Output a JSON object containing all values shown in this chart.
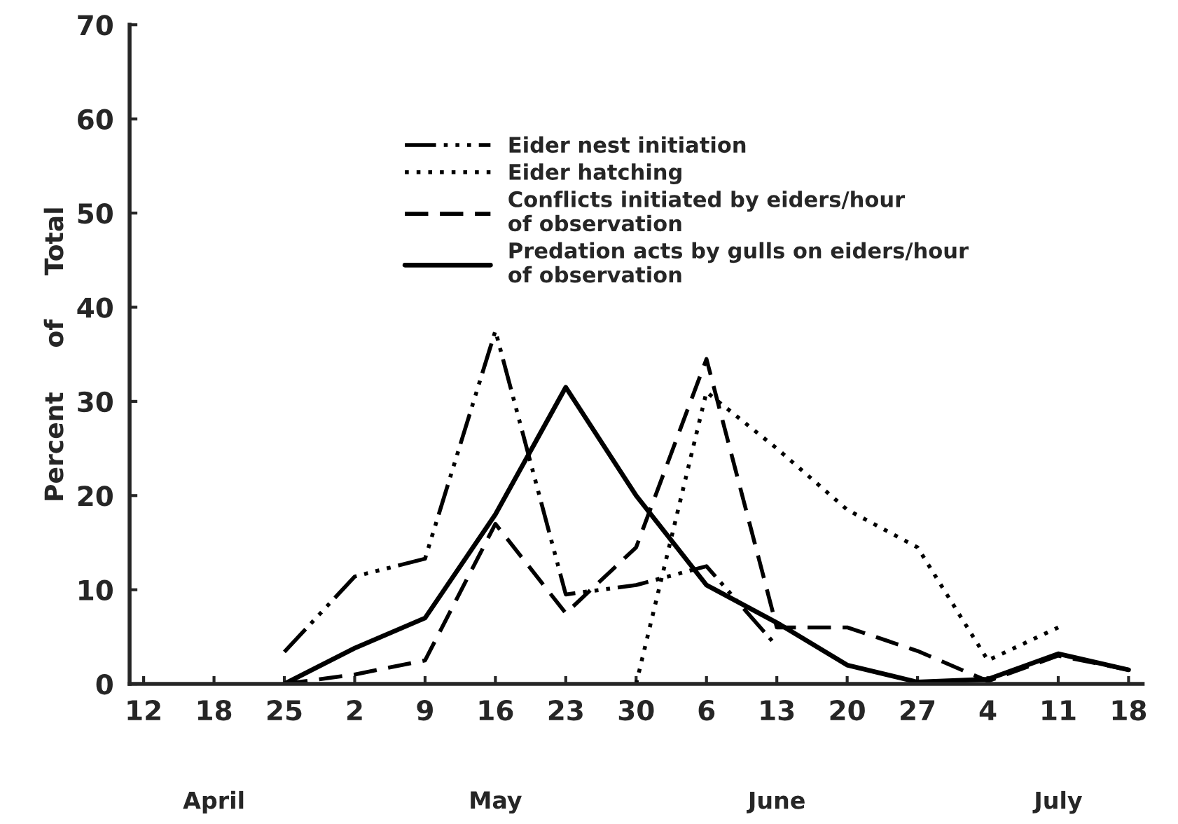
{
  "chart_data": {
    "type": "line",
    "ylabel": "Percent     of     Total",
    "categories": [
      "12",
      "18",
      "25",
      "2",
      "9",
      "16",
      "23",
      "30",
      "6",
      "13",
      "20",
      "27",
      "4",
      "11",
      "18"
    ],
    "ylim": [
      0,
      70
    ],
    "yticks": [
      0,
      10,
      20,
      30,
      40,
      50,
      60,
      70
    ],
    "series": [
      {
        "name": "Eider nest initiation",
        "color": "#000000",
        "line_style": "dashdotdot",
        "values": [
          null,
          null,
          3.4,
          11.4,
          13.3,
          37.5,
          9.5,
          10.5,
          12.5,
          4,
          null,
          null,
          null,
          null,
          null
        ]
      },
      {
        "name": "Eider hatching",
        "color": "#000000",
        "line_style": "dotted",
        "values": [
          null,
          null,
          null,
          null,
          null,
          null,
          null,
          0,
          31,
          25,
          18.5,
          14.5,
          2.5,
          6,
          null
        ]
      },
      {
        "name": "Conflicts initiated by eiders/hour\nof observation",
        "color": "#000000",
        "line_style": "dashed",
        "values": [
          null,
          null,
          0,
          1,
          2.5,
          17,
          7.5,
          14.5,
          34.5,
          6,
          6,
          3.5,
          0.3,
          3,
          1.5
        ]
      },
      {
        "name": "Predation acts by gulls on eiders/hour\nof observation",
        "color": "#000000",
        "line_style": "solid",
        "values": [
          null,
          null,
          0,
          3.8,
          7,
          18,
          31.5,
          20,
          10.5,
          6.5,
          2,
          0.2,
          0.5,
          3.2,
          1.5
        ]
      }
    ],
    "annotations": [
      "April",
      "May",
      "June",
      "July"
    ],
    "legend": "top",
    "grid": false,
    "marker": "none"
  }
}
